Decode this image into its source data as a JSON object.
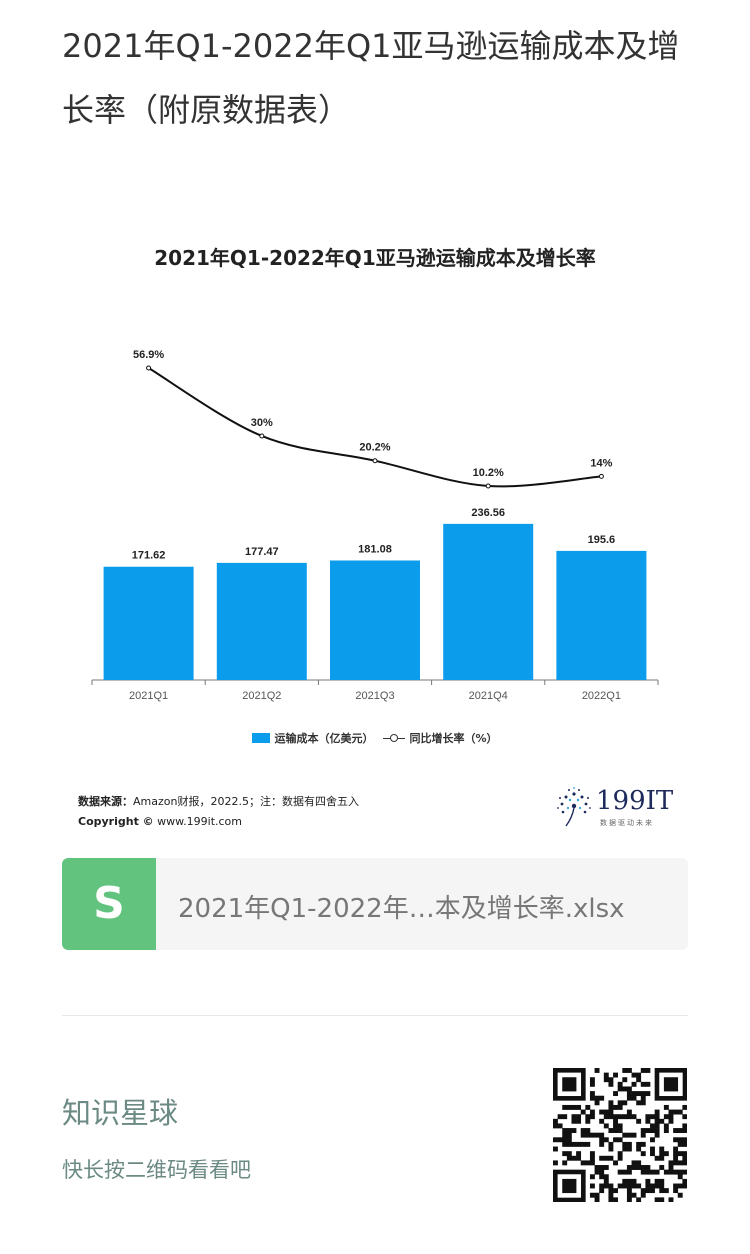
{
  "article": {
    "title": "2021年Q1-2022年Q1亚马逊运输成本及增长率（附原数据表）"
  },
  "chart": {
    "source_label": "数据来源：",
    "source_text": "Amazon财报，2022.5；注：数据有四舍五入",
    "copyright_label": "Copyright ©",
    "copyright_text": " www.199it.com",
    "brand": {
      "name_num": "199",
      "name_it": "IT",
      "tagline": "数据驱动未来"
    }
  },
  "chart_data": {
    "type": "bar",
    "title": "2021年Q1-2022年Q1亚马逊运输成本及增长率",
    "categories": [
      "2021Q1",
      "2021Q2",
      "2021Q3",
      "2021Q4",
      "2022Q1"
    ],
    "series": [
      {
        "name": "运输成本（亿美元）",
        "type": "bar",
        "values": [
          171.62,
          177.47,
          181.08,
          236.56,
          195.6
        ],
        "labels": [
          "171.62",
          "177.47",
          "181.08",
          "236.56",
          "195.6"
        ],
        "color": "#0c9cec"
      },
      {
        "name": "同比增长率（%）",
        "type": "line",
        "values": [
          56.9,
          30,
          20.2,
          10.2,
          14
        ],
        "labels": [
          "56.9%",
          "30%",
          "20.2%",
          "10.2%",
          "14%"
        ],
        "color": "#111111"
      }
    ],
    "legend_position": "bottom",
    "grid": false
  },
  "file": {
    "icon_letter": "S",
    "name": "2021年Q1-2022年…本及增长率.xlsx",
    "icon_color": "#62c37e"
  },
  "promo": {
    "title": "知识星球",
    "subtitle": "快长按二维码看看吧"
  }
}
